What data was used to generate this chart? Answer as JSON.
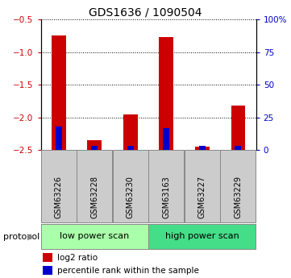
{
  "title": "GDS1636 / 1090504",
  "samples": [
    "GSM63226",
    "GSM63228",
    "GSM63230",
    "GSM63163",
    "GSM63227",
    "GSM63229"
  ],
  "log2_ratio": [
    -0.75,
    -2.35,
    -1.95,
    -0.77,
    -2.45,
    -1.82
  ],
  "percentile_rank": [
    18,
    3,
    3,
    17,
    3,
    3
  ],
  "ylim_left": [
    -2.5,
    -0.5
  ],
  "ylim_right": [
    0,
    100
  ],
  "yticks_left": [
    -2.5,
    -2.0,
    -1.5,
    -1.0,
    -0.5
  ],
  "yticks_right": [
    0,
    25,
    50,
    75,
    100
  ],
  "bar_color_red": "#CC0000",
  "bar_color_blue": "#0000CC",
  "bg_color": "#FFFFFF",
  "label_color_left": "#CC0000",
  "label_color_right": "#0000CC",
  "sample_box_color": "#CCCCCC",
  "low_group_color": "#AAFFAA",
  "high_group_color": "#44DD88",
  "title_fontsize": 10,
  "tick_fontsize": 7.5,
  "sample_fontsize": 7,
  "legend_fontsize": 7.5,
  "proto_fontsize": 8,
  "bar_width": 0.4,
  "blue_bar_width": 0.18
}
